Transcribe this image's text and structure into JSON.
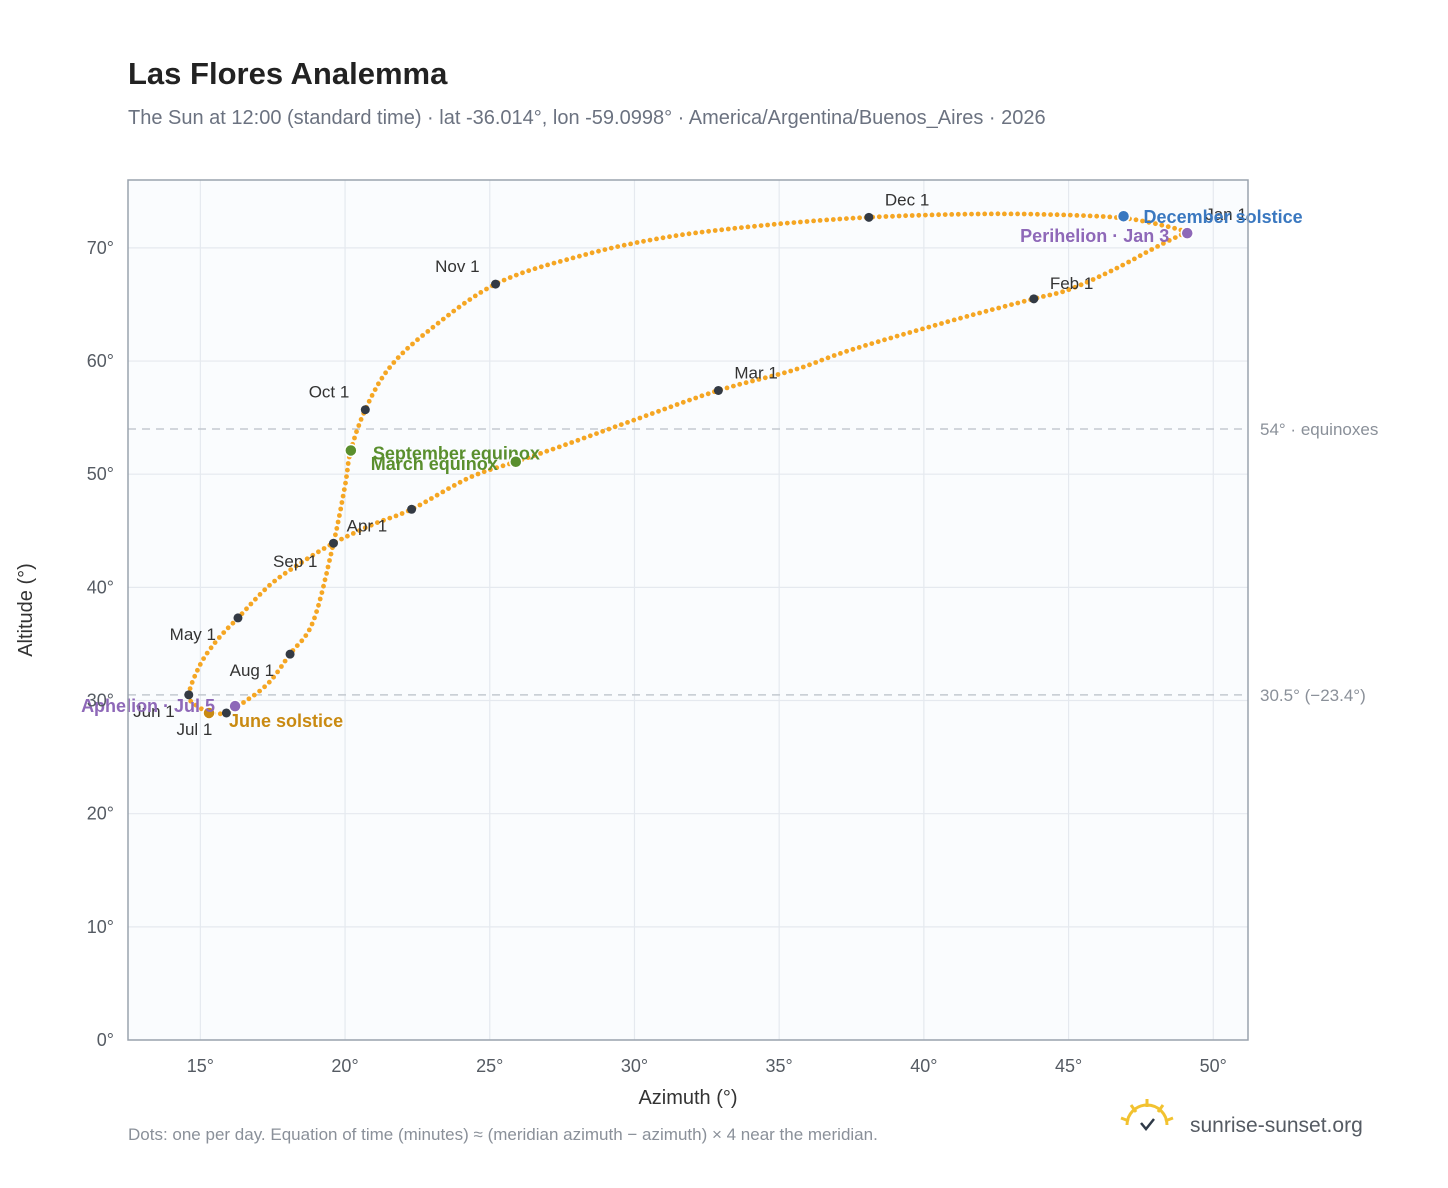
{
  "title": "Las Flores Analemma",
  "subtitle": "The Sun at 12:00 (standard time) · lat -36.014°, lon -59.0998° · America/Argentina/Buenos_Aires · 2026",
  "footer_note": "Dots: one per day. Equation of time (minutes) ≈ (meridian azimuth − azimuth) × 4 near the meridian.",
  "brand": {
    "name": "sunrise-sunset.org",
    "icon": "sun-logo-icon"
  },
  "colors": {
    "curve": "#f5a623",
    "month_marker": "#333a44",
    "grid": "#e5e9ef",
    "plot_bg": "#fafcfe",
    "frame": "#9aa3ae",
    "ref_line": "#c4c9d0",
    "equinox": "#5a8f2e",
    "june_solstice": "#c98a12",
    "december_solstice": "#3a78c0",
    "apsis": "#8e68b8"
  },
  "chart_data": {
    "type": "scatter",
    "xlabel": "Azimuth (°)",
    "ylabel": "Altitude (°)",
    "xlim": [
      12.5,
      51.2
    ],
    "ylim": [
      0,
      76
    ],
    "x_ticks": [
      15,
      20,
      25,
      30,
      35,
      40,
      45,
      50
    ],
    "y_ticks": [
      0,
      10,
      20,
      30,
      40,
      50,
      60,
      70
    ],
    "x_tick_labels": [
      "15°",
      "20°",
      "25°",
      "30°",
      "35°",
      "40°",
      "45°",
      "50°"
    ],
    "y_tick_labels": [
      "0°",
      "10°",
      "20°",
      "30°",
      "40°",
      "50°",
      "60°",
      "70°"
    ],
    "grid": true,
    "reference_lines": [
      {
        "y": 54.0,
        "label": "54° · equinoxes"
      },
      {
        "y": 30.5,
        "label": "30.5° (−23.4°)"
      }
    ],
    "analemma_path": [
      [
        49.1,
        71.4
      ],
      [
        48.2,
        70.3
      ],
      [
        46.5,
        68.0
      ],
      [
        45.0,
        66.3
      ],
      [
        43.8,
        65.5
      ],
      [
        41.0,
        63.6
      ],
      [
        37.5,
        61.0
      ],
      [
        35.5,
        59.2
      ],
      [
        32.9,
        57.4
      ],
      [
        30.0,
        54.8
      ],
      [
        27.5,
        52.5
      ],
      [
        25.9,
        51.1
      ],
      [
        24.3,
        49.7
      ],
      [
        22.3,
        46.9
      ],
      [
        21.0,
        45.6
      ],
      [
        19.6,
        43.9
      ],
      [
        18.5,
        42.2
      ],
      [
        17.4,
        40.2
      ],
      [
        16.3,
        37.3
      ],
      [
        15.6,
        35.4
      ],
      [
        15.0,
        33.2
      ],
      [
        14.6,
        30.5
      ],
      [
        14.9,
        29.5
      ],
      [
        15.4,
        28.9
      ],
      [
        15.9,
        28.9
      ],
      [
        16.3,
        29.5
      ],
      [
        17.3,
        31.4
      ],
      [
        18.1,
        34.1
      ],
      [
        18.9,
        37.0
      ],
      [
        19.6,
        43.9
      ],
      [
        20.0,
        49.0
      ],
      [
        20.2,
        52.1
      ],
      [
        20.7,
        55.7
      ],
      [
        21.5,
        59.3
      ],
      [
        22.8,
        62.5
      ],
      [
        25.2,
        66.8
      ],
      [
        28.0,
        69.2
      ],
      [
        31.0,
        70.9
      ],
      [
        34.5,
        72.0
      ],
      [
        38.1,
        72.7
      ],
      [
        42.0,
        73.0
      ],
      [
        45.0,
        72.9
      ],
      [
        47.0,
        72.6
      ],
      [
        48.4,
        71.9
      ],
      [
        49.1,
        71.4
      ]
    ],
    "month_markers": [
      {
        "label": "Jan 1",
        "x": 49.1,
        "y": 71.4
      },
      {
        "label": "Feb 1",
        "x": 43.8,
        "y": 65.5
      },
      {
        "label": "Mar 1",
        "x": 32.9,
        "y": 57.4
      },
      {
        "label": "Apr 1",
        "x": 22.3,
        "y": 46.9
      },
      {
        "label": "May 1",
        "x": 16.3,
        "y": 37.3
      },
      {
        "label": "Jun 1",
        "x": 14.6,
        "y": 30.5
      },
      {
        "label": "Jul 1",
        "x": 15.9,
        "y": 28.9
      },
      {
        "label": "Aug 1",
        "x": 18.1,
        "y": 34.1
      },
      {
        "label": "Sep 1",
        "x": 19.6,
        "y": 43.9
      },
      {
        "label": "Oct 1",
        "x": 20.7,
        "y": 55.7
      },
      {
        "label": "Nov 1",
        "x": 25.2,
        "y": 66.8
      },
      {
        "label": "Dec 1",
        "x": 38.1,
        "y": 72.7
      }
    ],
    "events": [
      {
        "label": "December solstice",
        "x": 46.9,
        "y": 72.8,
        "color": "#3a78c0"
      },
      {
        "label": "Perihelion · Jan 3",
        "x": 49.1,
        "y": 71.3,
        "color": "#8e68b8"
      },
      {
        "label": "September equinox",
        "x": 20.2,
        "y": 52.1,
        "color": "#5a8f2e"
      },
      {
        "label": "March equinox",
        "x": 25.9,
        "y": 51.1,
        "color": "#5a8f2e"
      },
      {
        "label": "June solstice",
        "x": 15.3,
        "y": 28.9,
        "color": "#c98a12"
      },
      {
        "label": "Aphelion · Jul 5",
        "x": 16.2,
        "y": 29.5,
        "color": "#8e68b8"
      }
    ]
  }
}
